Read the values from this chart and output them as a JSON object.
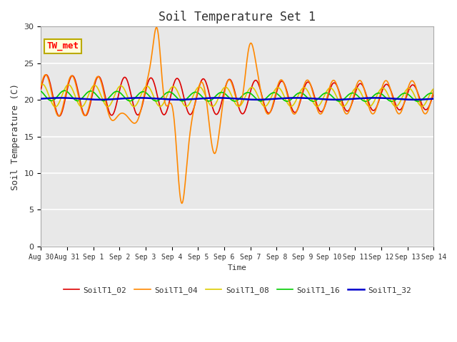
{
  "title": "Soil Temperature Set 1",
  "xlabel": "Time",
  "ylabel": "Soil Temperature (C)",
  "ylim": [
    0,
    30
  ],
  "background_color": "#e8e8e8",
  "annotation_text": "TW_met",
  "annotation_bg": "#ffffdd",
  "annotation_border": "#bbaa00",
  "series": {
    "SoilT1_02": {
      "color": "#dd0000",
      "lw": 1.2
    },
    "SoilT1_04": {
      "color": "#ff8800",
      "lw": 1.2
    },
    "SoilT1_08": {
      "color": "#ddcc00",
      "lw": 1.2
    },
    "SoilT1_16": {
      "color": "#00cc00",
      "lw": 1.2
    },
    "SoilT1_32": {
      "color": "#0000cc",
      "lw": 1.8
    }
  },
  "tick_labels": [
    "Aug 30",
    "Aug 31",
    "Sep 1",
    "Sep 2",
    "Sep 3",
    "Sep 4",
    "Sep 5",
    "Sep 6",
    "Sep 7",
    "Sep 8",
    "Sep 9",
    "Sep 10",
    "Sep 11",
    "Sep 12",
    "Sep 13",
    "Sep 14"
  ],
  "font_family": "monospace"
}
